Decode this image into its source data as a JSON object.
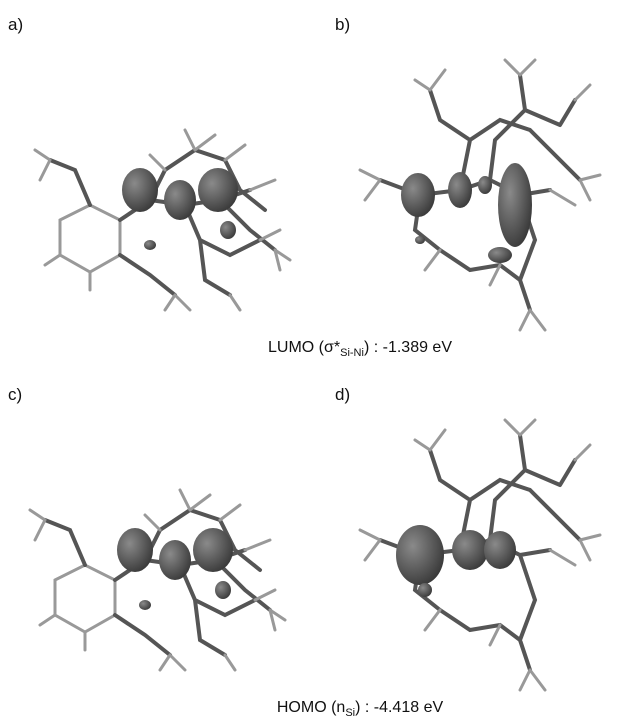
{
  "panels": [
    {
      "label": "a)"
    },
    {
      "label": "b)"
    },
    {
      "label": "c)"
    },
    {
      "label": "d)"
    }
  ],
  "captions": [
    {
      "prefix": "LUMO (σ*",
      "subscript": "Si-Ni",
      "suffix": ") : -1.389 eV"
    },
    {
      "prefix": "HOMO (n",
      "subscript": "Si",
      "suffix": ") : -4.418 eV"
    }
  ]
}
